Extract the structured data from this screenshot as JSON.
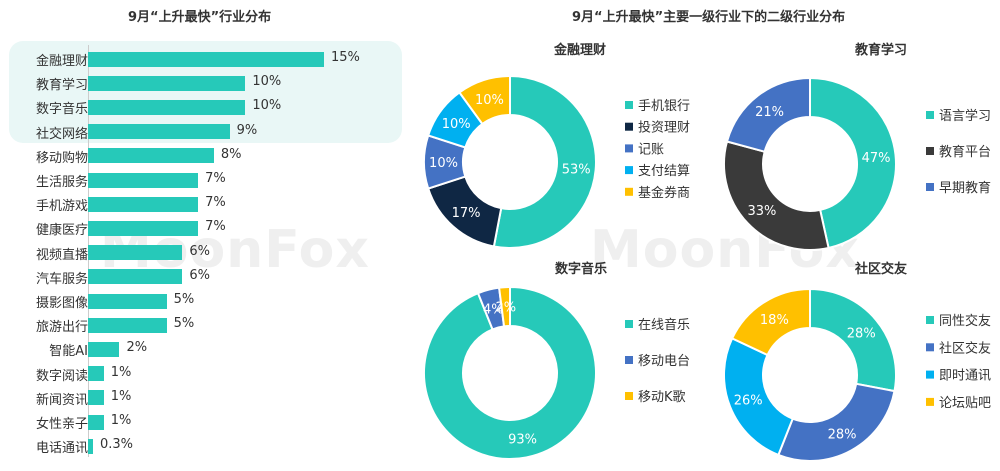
{
  "watermark": "MoonFox",
  "left_title": "9月“上升最快”行业分布",
  "right_title": "9月“上升最快”主要一级行业下的二级行业分布",
  "colors": {
    "bar": "#26c9b9",
    "highlight": "#e9f7f6"
  },
  "chart_data": [
    {
      "type": "bar",
      "orientation": "horizontal",
      "title": "9月“上升最快”行业分布",
      "categories": [
        "金融理财",
        "教育学习",
        "数字音乐",
        "社交网络",
        "移动购物",
        "生活服务",
        "手机游戏",
        "健康医疗",
        "视频直播",
        "汽车服务",
        "摄影图像",
        "旅游出行",
        "智能AI",
        "数字阅读",
        "新闻资讯",
        "女性亲子",
        "电话通讯"
      ],
      "values": [
        15,
        10,
        10,
        9,
        8,
        7,
        7,
        7,
        6,
        6,
        5,
        5,
        2,
        1,
        1,
        1,
        0.3
      ],
      "labels": [
        "15%",
        "10%",
        "10%",
        "9%",
        "8%",
        "7%",
        "7%",
        "7%",
        "6%",
        "6%",
        "5%",
        "5%",
        "2%",
        "1%",
        "1%",
        "1%",
        "0.3%"
      ],
      "highlighted": [
        "金融理财",
        "教育学习",
        "数字音乐",
        "社交网络"
      ],
      "xlim": [
        0,
        15
      ]
    },
    {
      "type": "pie",
      "subtype": "donut",
      "title": "金融理财",
      "labels": [
        "手机银行",
        "投资理财",
        "记账",
        "支付结算",
        "基金券商"
      ],
      "values": [
        53,
        17,
        10,
        10,
        10
      ],
      "value_labels": [
        "53%",
        "17%",
        "10%",
        "10%",
        "10%"
      ],
      "colors": [
        "#26c9b9",
        "#0f2744",
        "#4472c4",
        "#00b0f0",
        "#ffc000"
      ]
    },
    {
      "type": "pie",
      "subtype": "donut",
      "title": "教育学习",
      "labels": [
        "语言学习",
        "教育平台",
        "早期教育"
      ],
      "values": [
        47,
        33,
        21
      ],
      "value_labels": [
        "47%",
        "33%",
        "21%"
      ],
      "colors": [
        "#26c9b9",
        "#3a3a3a",
        "#4472c4"
      ]
    },
    {
      "type": "pie",
      "subtype": "donut",
      "title": "数字音乐",
      "labels": [
        "在线音乐",
        "移动电台",
        "移动K歌"
      ],
      "values": [
        93,
        4,
        2
      ],
      "value_labels": [
        "93%",
        "4%",
        "2%"
      ],
      "colors": [
        "#26c9b9",
        "#4472c4",
        "#ffc000"
      ]
    },
    {
      "type": "pie",
      "subtype": "donut",
      "title": "社区交友",
      "labels": [
        "同性交友",
        "社区交友",
        "即时通讯",
        "论坛贴吧"
      ],
      "values": [
        28,
        28,
        26,
        18
      ],
      "value_labels": [
        "28%",
        "28%",
        "26%",
        "18%"
      ],
      "colors": [
        "#26c9b9",
        "#4472c4",
        "#00b0f0",
        "#ffc000"
      ]
    }
  ]
}
